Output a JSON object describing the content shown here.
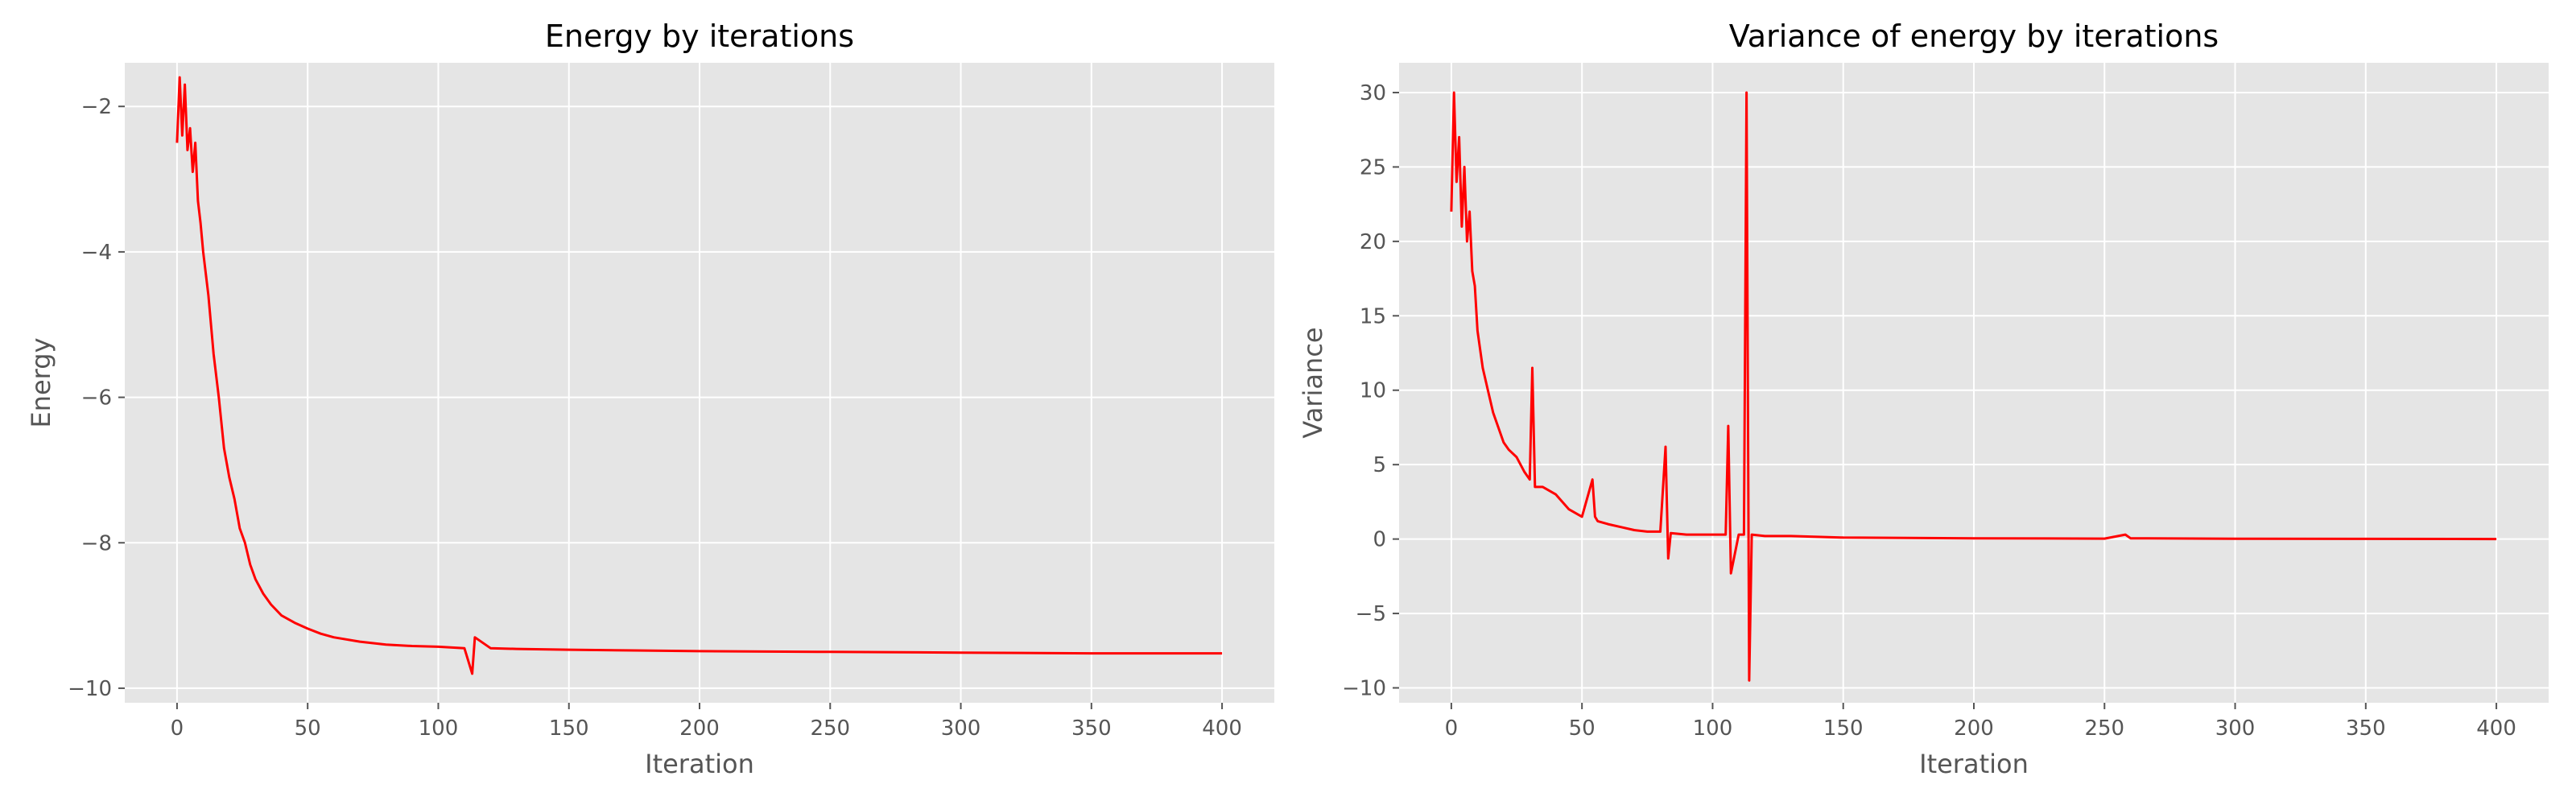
{
  "chart_data": [
    {
      "type": "line",
      "title": "Energy by iterations",
      "xlabel": "Iteration",
      "ylabel": "Energy",
      "xlim": [
        -20,
        420
      ],
      "ylim": [
        -10.2,
        -1.4
      ],
      "xticks": [
        0,
        50,
        100,
        150,
        200,
        250,
        300,
        350,
        400
      ],
      "yticks": [
        -10,
        -8,
        -6,
        -4,
        -2
      ],
      "xtick_labels": [
        "0",
        "50",
        "100",
        "150",
        "200",
        "250",
        "300",
        "350",
        "400"
      ],
      "ytick_labels": [
        "−10",
        "−8",
        "−6",
        "−4",
        "−2"
      ],
      "grid": true,
      "color": "#ff0000",
      "series": [
        {
          "x": [
            0,
            1,
            2,
            3,
            4,
            5,
            6,
            7,
            8,
            9,
            10,
            12,
            14,
            16,
            18,
            20,
            22,
            24,
            26,
            28,
            30,
            33,
            36,
            40,
            45,
            50,
            55,
            60,
            70,
            80,
            90,
            100,
            110,
            113,
            114,
            120,
            130,
            150,
            175,
            200,
            250,
            300,
            350,
            400
          ],
          "values": [
            -2.5,
            -1.6,
            -2.4,
            -1.7,
            -2.6,
            -2.3,
            -2.9,
            -2.5,
            -3.3,
            -3.6,
            -4.0,
            -4.6,
            -5.4,
            -6.0,
            -6.7,
            -7.1,
            -7.4,
            -7.8,
            -8.0,
            -8.3,
            -8.5,
            -8.7,
            -8.85,
            -9.0,
            -9.1,
            -9.18,
            -9.25,
            -9.3,
            -9.36,
            -9.4,
            -9.42,
            -9.43,
            -9.45,
            -9.8,
            -9.3,
            -9.45,
            -9.46,
            -9.47,
            -9.48,
            -9.49,
            -9.5,
            -9.51,
            -9.52,
            -9.52
          ]
        }
      ]
    },
    {
      "type": "line",
      "title": "Variance of energy by iterations",
      "xlabel": "Iteration",
      "ylabel": "Variance",
      "xlim": [
        -20,
        420
      ],
      "ylim": [
        -11,
        32
      ],
      "xticks": [
        0,
        50,
        100,
        150,
        200,
        250,
        300,
        350,
        400
      ],
      "yticks": [
        -10,
        -5,
        0,
        5,
        10,
        15,
        20,
        25,
        30
      ],
      "xtick_labels": [
        "0",
        "50",
        "100",
        "150",
        "200",
        "250",
        "300",
        "350",
        "400"
      ],
      "ytick_labels": [
        "−10",
        "−5",
        "0",
        "5",
        "10",
        "15",
        "20",
        "25",
        "30"
      ],
      "grid": true,
      "color": "#ff0000",
      "series": [
        {
          "x": [
            0,
            1,
            2,
            3,
            4,
            5,
            6,
            7,
            8,
            9,
            10,
            12,
            14,
            16,
            18,
            20,
            22,
            25,
            28,
            30,
            31,
            32,
            35,
            40,
            45,
            50,
            54,
            55,
            56,
            60,
            65,
            70,
            75,
            80,
            82,
            83,
            84,
            90,
            100,
            105,
            106,
            107,
            110,
            112,
            113,
            114,
            115,
            120,
            130,
            150,
            200,
            250,
            258,
            260,
            300,
            350,
            400
          ],
          "values": [
            22,
            30,
            24,
            27,
            21,
            25,
            20,
            22,
            18,
            17,
            14,
            11.5,
            10,
            8.5,
            7.5,
            6.5,
            6,
            5.5,
            4.5,
            4,
            11.5,
            3.5,
            3.5,
            3,
            2,
            1.5,
            4,
            1.5,
            1.2,
            1,
            0.8,
            0.6,
            0.5,
            0.5,
            6.2,
            -1.3,
            0.4,
            0.3,
            0.3,
            0.3,
            7.6,
            -2.3,
            0.3,
            0.3,
            30,
            -9.5,
            0.3,
            0.2,
            0.2,
            0.1,
            0.05,
            0.03,
            0.3,
            0.05,
            0.02,
            0.01,
            0.0
          ]
        }
      ]
    }
  ]
}
